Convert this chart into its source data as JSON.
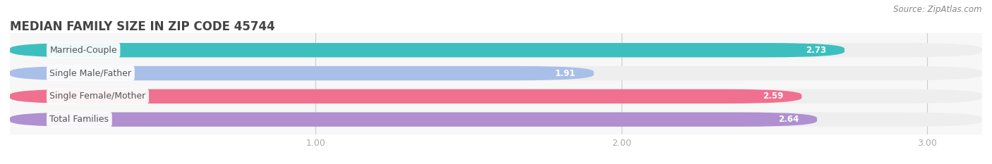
{
  "title": "MEDIAN FAMILY SIZE IN ZIP CODE 45744",
  "source": "Source: ZipAtlas.com",
  "categories": [
    "Married-Couple",
    "Single Male/Father",
    "Single Female/Mother",
    "Total Families"
  ],
  "values": [
    2.73,
    1.91,
    2.59,
    2.64
  ],
  "bar_colors": [
    "#3dbfbf",
    "#a8bfe8",
    "#f07090",
    "#b090d0"
  ],
  "bar_bg_colors": [
    "#eeeeee",
    "#eeeeee",
    "#eeeeee",
    "#eeeeee"
  ],
  "xlim_min": 0.0,
  "xlim_max": 3.18,
  "xstart": 0.0,
  "xticks": [
    1.0,
    2.0,
    3.0
  ],
  "xtick_labels": [
    "1.00",
    "2.00",
    "3.00"
  ],
  "background_color": "#ffffff",
  "plot_bg_color": "#f7f7f7",
  "title_fontsize": 12,
  "label_fontsize": 9,
  "value_fontsize": 8.5,
  "source_fontsize": 8.5,
  "bar_height": 0.62,
  "title_color": "#444444",
  "label_color": "#555555",
  "value_color": "#ffffff",
  "source_color": "#888888",
  "tick_color": "#aaaaaa"
}
